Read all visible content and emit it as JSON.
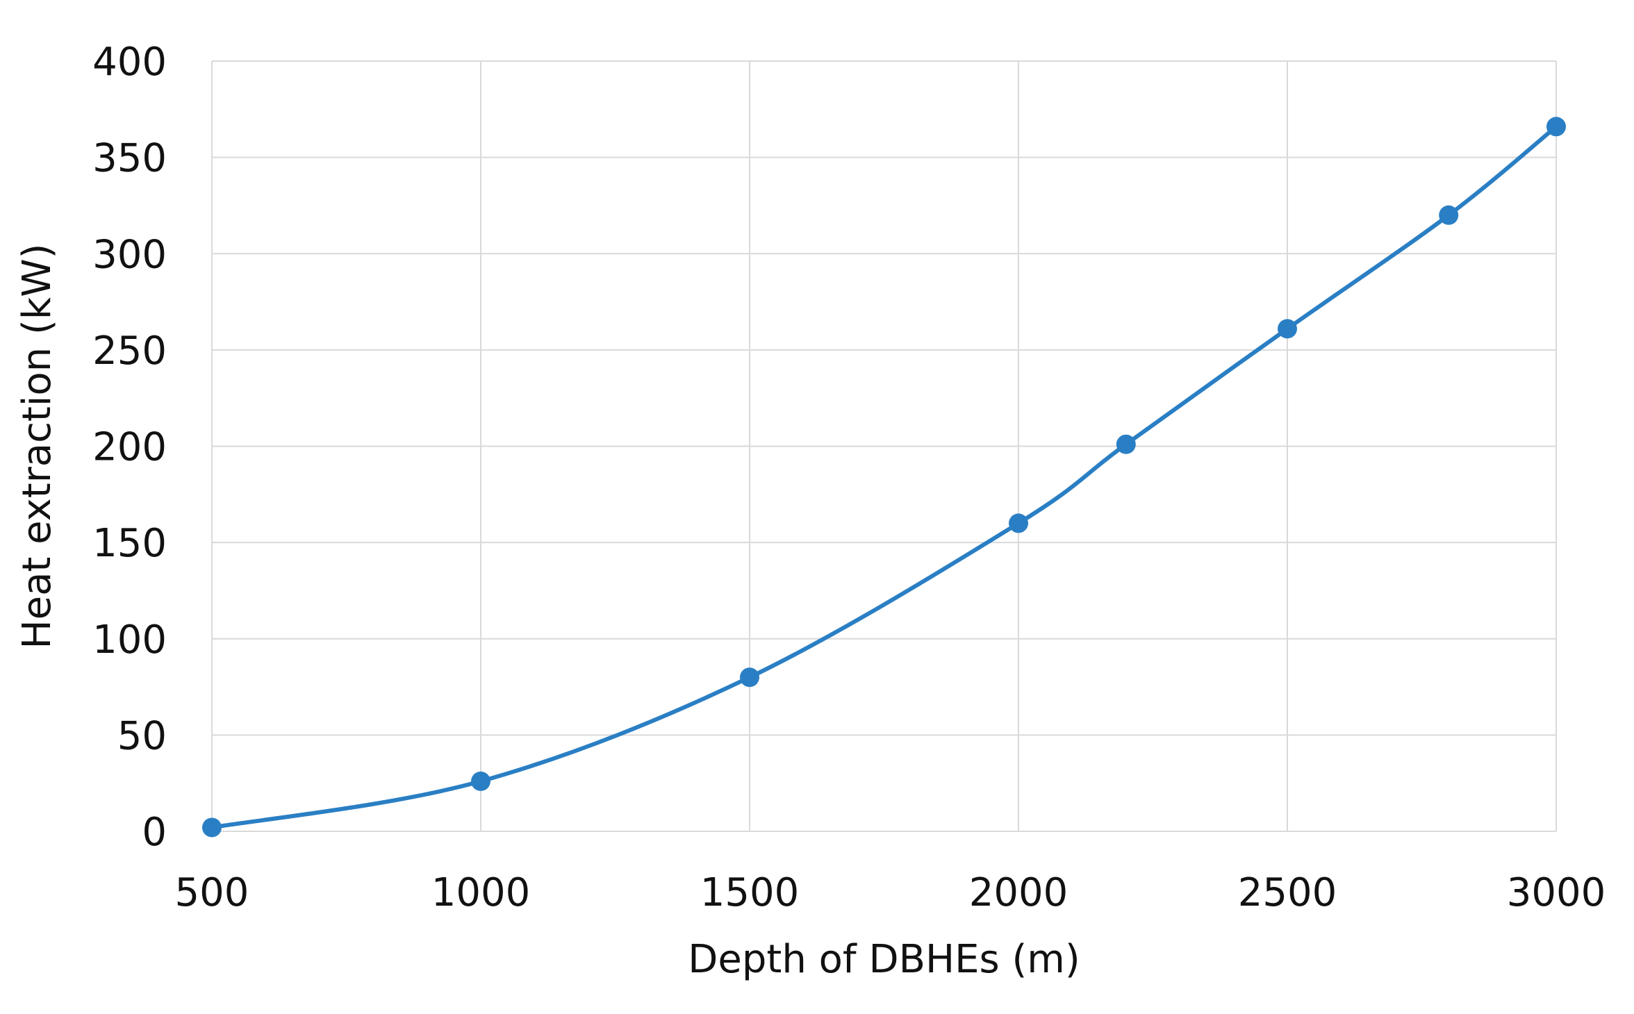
{
  "chart_data": {
    "type": "line",
    "xlabel": "Depth of DBHEs (m)",
    "ylabel": "Heat extraction (kW)",
    "xlim": [
      500,
      3000
    ],
    "ylim": [
      0,
      400
    ],
    "xticks": [
      500,
      1000,
      1500,
      2000,
      2500,
      3000
    ],
    "yticks": [
      0,
      50,
      100,
      150,
      200,
      250,
      300,
      350,
      400
    ],
    "grid": true,
    "legend": "none",
    "series": [
      {
        "color": "#2a7fc4",
        "marker": "circle",
        "x": [
          500,
          1000,
          1500,
          2000,
          2200,
          2500,
          2800,
          3000
        ],
        "y": [
          2,
          26,
          80,
          160,
          201,
          261,
          320,
          366
        ]
      }
    ]
  }
}
